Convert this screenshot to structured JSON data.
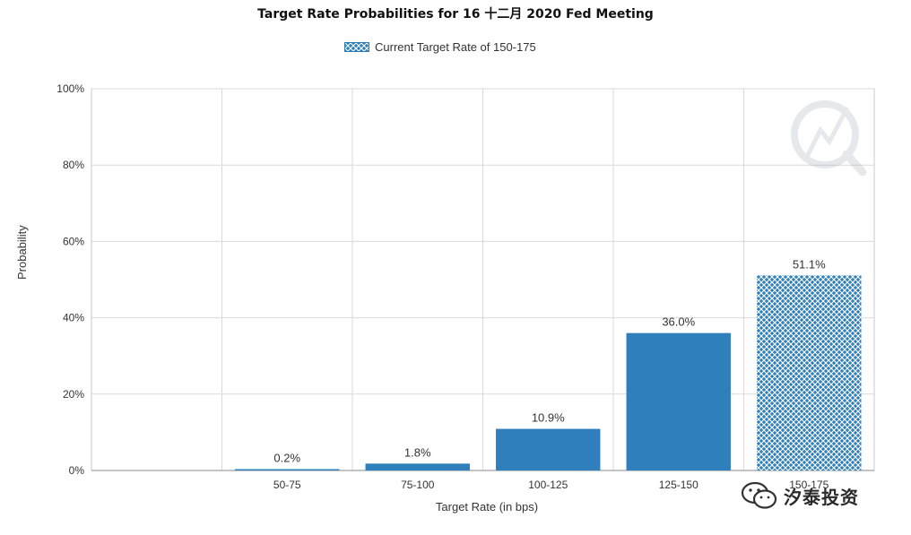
{
  "chart_data": {
    "type": "bar",
    "title": "Target Rate Probabilities for 16 十二月 2020 Fed Meeting",
    "xlabel": "Target Rate (in bps)",
    "ylabel": "Probability",
    "categories": [
      "50-75",
      "75-100",
      "100-125",
      "125-150",
      "150-175"
    ],
    "values": [
      0.2,
      1.8,
      10.9,
      36.0,
      51.1
    ],
    "data_labels": [
      "0.2%",
      "1.8%",
      "10.9%",
      "36.0%",
      "51.1%"
    ],
    "ylim": [
      0,
      100
    ],
    "yticks": [
      "0%",
      "20%",
      "40%",
      "60%",
      "80%",
      "100%"
    ],
    "y_tick_values": [
      0,
      20,
      40,
      60,
      80,
      100
    ],
    "highlighted_category": "150-175",
    "legend": {
      "label": "Current Target Rate of 150-175",
      "placement": "top-center"
    },
    "grid": true,
    "colors": {
      "bar": "#2f7fbd",
      "hatch": "#ffffff",
      "grid": "#d9d9d9"
    }
  },
  "watermark": {
    "text": "汐泰投资",
    "logo": "wechat-icon"
  }
}
